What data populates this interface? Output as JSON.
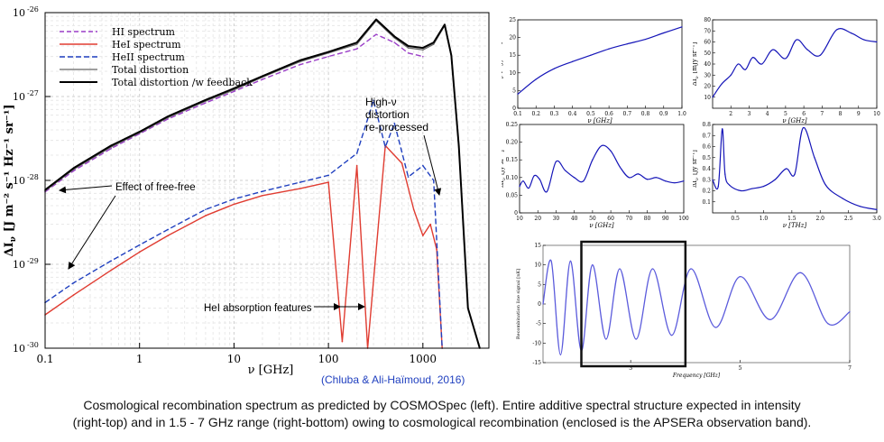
{
  "main_chart": {
    "chart_data": {
      "type": "line",
      "title": "",
      "xlabel": "ν  [GHz]",
      "ylabel": "ΔI",
      "ylabel_sub": "ν",
      "ylabel_units": "[J m⁻² s⁻¹ Hz⁻¹ sr⁻¹]",
      "xscale": "log",
      "yscale": "log",
      "xlim": [
        0.1,
        5000
      ],
      "ylim": [
        1e-30,
        1e-26
      ],
      "x_ticks": [
        {
          "value": 0.1,
          "label": "0.1"
        },
        {
          "value": 1,
          "label": "1"
        },
        {
          "value": 10,
          "label": "10"
        },
        {
          "value": 100,
          "label": "100"
        },
        {
          "value": 1000,
          "label": "1000"
        }
      ],
      "y_ticks": [
        {
          "value": 1e-30,
          "base": "10",
          "exp": "-30"
        },
        {
          "value": 1e-29,
          "base": "10",
          "exp": "-29"
        },
        {
          "value": 1e-28,
          "base": "10",
          "exp": "-28"
        },
        {
          "value": 1e-27,
          "base": "10",
          "exp": "-27"
        },
        {
          "value": 1e-26,
          "base": "10",
          "exp": "-26"
        }
      ],
      "legend_position": "top-left",
      "series": [
        {
          "name": "HI spectrum",
          "color": "#9b3fc8",
          "style": "dashed",
          "x": [
            0.1,
            0.2,
            0.5,
            1,
            2,
            5,
            10,
            20,
            50,
            100,
            200,
            320,
            500,
            700,
            1000
          ],
          "y": [
            7.3e-29,
            1.3e-28,
            2.4e-28,
            3.6e-28,
            5.4e-28,
            8.4e-28,
            1.15e-27,
            1.6e-27,
            2.4e-27,
            3e-27,
            3.7e-27,
            5.5e-27,
            4.4e-27,
            3.3e-27,
            3e-27
          ]
        },
        {
          "name": "HeI spectrum",
          "color": "#e03c31",
          "style": "solid",
          "x": [
            0.1,
            0.2,
            0.5,
            1,
            2,
            5,
            10,
            20,
            50,
            100,
            140,
            200,
            260,
            400,
            600,
            800,
            1000,
            1200,
            1400,
            1600
          ],
          "y": [
            2.5e-30,
            4.3e-30,
            8.5e-30,
            1.4e-29,
            2.2e-29,
            3.8e-29,
            5.2e-29,
            6.6e-29,
            8e-29,
            9.5e-29,
            1.2e-30,
            1.5e-28,
            1e-30,
            2.6e-28,
            1.6e-28,
            4.5e-29,
            2.2e-29,
            3e-29,
            1.5e-29,
            1e-30
          ]
        },
        {
          "name": "HeII spectrum",
          "color": "#1f3fbf",
          "style": "dashed",
          "x": [
            0.1,
            0.2,
            0.5,
            1,
            2,
            5,
            10,
            20,
            50,
            100,
            200,
            300,
            400,
            500,
            700,
            1000,
            1300,
            1600
          ],
          "y": [
            3.5e-30,
            6e-30,
            1.1e-29,
            1.7e-29,
            2.6e-29,
            4.5e-29,
            6e-29,
            7.4e-29,
            9.5e-29,
            1.15e-28,
            2.1e-28,
            9e-28,
            2.5e-28,
            4.8e-28,
            1.1e-28,
            1.5e-28,
            1e-28,
            1e-30
          ]
        },
        {
          "name": "Total distortion",
          "color": "#666666",
          "style": "solid",
          "x": [
            0.1,
            0.2,
            0.5,
            1,
            2,
            5,
            10,
            20,
            50,
            100,
            200,
            320,
            500,
            700,
            1000,
            1300,
            1700,
            2000,
            2400,
            3000,
            4000
          ],
          "y": [
            7.5e-29,
            1.35e-28,
            2.5e-28,
            3.7e-28,
            5.6e-28,
            8.8e-28,
            1.2e-27,
            1.7e-27,
            2.6e-27,
            3.3e-27,
            4.2e-27,
            8e-27,
            5e-27,
            3.8e-27,
            3.6e-27,
            4.2e-27,
            7e-27,
            3e-27,
            2.5e-28,
            3e-30,
            1e-30
          ]
        },
        {
          "name": "Total distortion /w feedback",
          "color": "#000000",
          "style": "solid",
          "x": [
            0.1,
            0.2,
            0.5,
            1,
            2,
            5,
            10,
            20,
            50,
            100,
            200,
            320,
            500,
            700,
            1000,
            1300,
            1700,
            2000,
            2400,
            3000,
            4000
          ],
          "y": [
            7.7e-29,
            1.4e-28,
            2.6e-28,
            3.8e-28,
            5.8e-28,
            9.1e-28,
            1.25e-27,
            1.75e-27,
            2.7e-27,
            3.4e-27,
            4.4e-27,
            8.3e-27,
            5.2e-27,
            4e-27,
            3.8e-27,
            4.4e-27,
            7.2e-27,
            3.1e-27,
            2.6e-28,
            3e-30,
            1e-30
          ]
        }
      ],
      "annotations": [
        {
          "text": "Effect of free-free"
        },
        {
          "text": "High-ν"
        },
        {
          "text": "distortion"
        },
        {
          "text": "re-processed"
        },
        {
          "text": "HeI absorption features"
        }
      ],
      "credit": "(Chluba & Ali-Haïmoud, 2016)"
    }
  },
  "panels": [
    {
      "id": "p1",
      "chart_data": {
        "type": "line",
        "color": "#1515b8",
        "xlabel": "ν [GHz]",
        "ylabel": "ΔI",
        "ylabel_sub": "ν",
        "ylabel_units": "[mJy sr⁻¹]",
        "xlim": [
          0.1,
          1.0
        ],
        "ylim": [
          0,
          25
        ],
        "x_ticks": [
          "0.1",
          "0.2",
          "0.3",
          "0.4",
          "0.5",
          "0.6",
          "0.7",
          "0.8",
          "0.9",
          "1.0"
        ],
        "y_ticks": [
          "0",
          "5",
          "10",
          "15",
          "20",
          "25"
        ],
        "x": [
          0.1,
          0.2,
          0.3,
          0.4,
          0.5,
          0.6,
          0.7,
          0.8,
          0.9,
          1.0
        ],
        "y": [
          4.0,
          8.2,
          11.2,
          13.2,
          15.0,
          16.8,
          18.2,
          19.5,
          21.3,
          23.0
        ]
      }
    },
    {
      "id": "p2",
      "chart_data": {
        "type": "line",
        "color": "#1515b8",
        "xlabel": "ν [GHz]",
        "ylabel": "ΔI",
        "ylabel_sub": "ν",
        "ylabel_units": "[mJy sr⁻¹]",
        "xlim": [
          1,
          10
        ],
        "ylim": [
          0,
          80
        ],
        "x_ticks": [
          "2",
          "3",
          "4",
          "5",
          "6",
          "7",
          "8",
          "9",
          "10"
        ],
        "y_ticks": [
          "10",
          "20",
          "30",
          "40",
          "50",
          "60",
          "70",
          "80"
        ],
        "x": [
          1.0,
          1.5,
          2.0,
          2.4,
          2.8,
          3.2,
          3.7,
          4.3,
          5.0,
          5.6,
          6.2,
          6.9,
          7.8,
          8.6,
          9.3,
          10.0
        ],
        "y": [
          10,
          22,
          30,
          40,
          35,
          46,
          40,
          53,
          45,
          62,
          53,
          48,
          71,
          68,
          62,
          60
        ]
      }
    },
    {
      "id": "p3",
      "chart_data": {
        "type": "line",
        "color": "#1515b8",
        "xlabel": "ν [GHz]",
        "ylabel": "ΔI",
        "ylabel_sub": "ν",
        "ylabel_units": "[Jy sr⁻¹]",
        "xlim": [
          10,
          100
        ],
        "ylim": [
          0,
          0.25
        ],
        "x_ticks": [
          "10",
          "20",
          "30",
          "40",
          "50",
          "60",
          "70",
          "80",
          "90",
          "100"
        ],
        "y_ticks": [
          "0",
          "0.05",
          "0.10",
          "0.15",
          "0.20",
          "0.25"
        ],
        "x": [
          10,
          12,
          15,
          18,
          21,
          25,
          30,
          35,
          40,
          45,
          50,
          55,
          60,
          65,
          70,
          75,
          80,
          85,
          90,
          95,
          100
        ],
        "y": [
          0.075,
          0.09,
          0.07,
          0.105,
          0.095,
          0.06,
          0.145,
          0.12,
          0.1,
          0.09,
          0.15,
          0.19,
          0.175,
          0.13,
          0.1,
          0.11,
          0.095,
          0.1,
          0.09,
          0.085,
          0.09
        ]
      }
    },
    {
      "id": "p4",
      "chart_data": {
        "type": "line",
        "color": "#1515b8",
        "xlabel": "ν [THz]",
        "ylabel": "ΔI",
        "ylabel_sub": "ν",
        "ylabel_units": "[Jy sr⁻¹]",
        "xlim": [
          0.1,
          3.0
        ],
        "ylim": [
          0,
          0.8
        ],
        "x_ticks": [
          "0.5",
          "1.0",
          "1.5",
          "2.0",
          "2.5",
          "3.0"
        ],
        "y_ticks": [
          "0.1",
          "0.2",
          "0.3",
          "0.4",
          "0.5",
          "0.6",
          "0.7",
          "0.8"
        ],
        "x": [
          0.1,
          0.2,
          0.27,
          0.32,
          0.4,
          0.6,
          0.8,
          1.0,
          1.2,
          1.4,
          1.55,
          1.7,
          1.9,
          2.1,
          2.4,
          2.7,
          3.0
        ],
        "y": [
          0.3,
          0.24,
          0.76,
          0.35,
          0.25,
          0.2,
          0.22,
          0.24,
          0.3,
          0.4,
          0.35,
          0.77,
          0.5,
          0.25,
          0.13,
          0.06,
          0.03
        ]
      }
    },
    {
      "id": "p5",
      "chart_data": {
        "type": "line",
        "color": "#5b5bdc",
        "xlabel": "Frequency [GHz]",
        "ylabel": "Recombination line signal [nK]",
        "xlim": [
          1.4,
          7.0
        ],
        "ylim": [
          -15,
          15
        ],
        "x_ticks": [
          "3",
          "5",
          "7"
        ],
        "y_ticks": [
          "-15",
          "-10",
          "-5",
          "0",
          "5",
          "10",
          "15"
        ],
        "x": [
          1.4,
          1.55,
          1.72,
          1.9,
          2.1,
          2.3,
          2.55,
          2.8,
          3.1,
          3.4,
          3.75,
          4.1,
          4.55,
          5.0,
          5.55,
          6.1,
          6.6,
          7.0
        ],
        "y": [
          0,
          11,
          -13,
          11,
          -12,
          10,
          -9,
          9,
          -9,
          9,
          -8,
          9,
          -6,
          7,
          -4,
          8,
          -5,
          -2
        ],
        "highlight_box": {
          "x_range": [
            2.1,
            4.0
          ],
          "label": "APSERa observation band"
        }
      }
    }
  ],
  "caption": {
    "line1": "Cosmological recombination spectrum as predicted by COSMOSpec (left). Entire additive spectral structure expected in intensity",
    "line2": "(right-top) and in 1.5 - 7 GHz range (right-bottom) owing to cosmological recombination (enclosed is the APSERa observation band)."
  }
}
